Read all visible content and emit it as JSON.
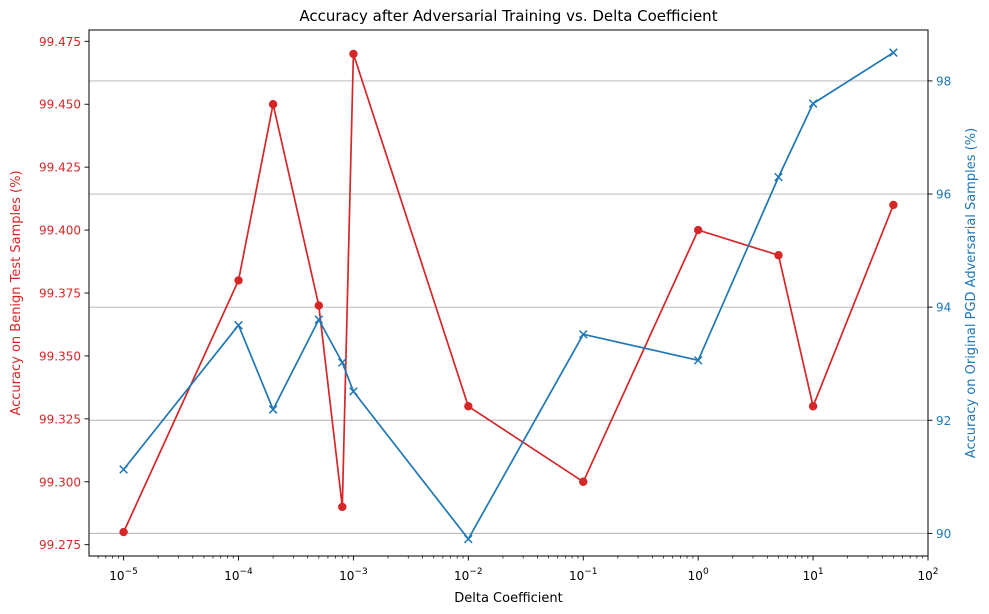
{
  "chart_data": {
    "type": "line",
    "title": "Accuracy after Adversarial Training vs. Delta Coefficient",
    "xlabel": "Delta Coefficient",
    "x_scale": "log",
    "xlim": [
      5e-06,
      100
    ],
    "x_tick_values": [
      1e-05,
      0.0001,
      0.001,
      0.01,
      0.1,
      1,
      10,
      100
    ],
    "x_tick_exponents": [
      "−5",
      "−4",
      "−3",
      "−2",
      "−1",
      "0",
      "1",
      "2"
    ],
    "x_tick_base": "10",
    "x": [
      1e-05,
      0.0001,
      0.0002,
      0.0005,
      0.0008,
      0.001,
      0.01,
      0.1,
      1,
      5,
      10,
      50
    ],
    "y_left": {
      "label": "Accuracy on Benign Test Samples (%)",
      "color": "#d62728",
      "ylim": [
        99.2705,
        99.4795
      ],
      "ticks": [
        99.275,
        99.3,
        99.325,
        99.35,
        99.375,
        99.4,
        99.425,
        99.45,
        99.475
      ],
      "tick_labels": [
        "99.275",
        "99.300",
        "99.325",
        "99.350",
        "99.375",
        "99.400",
        "99.425",
        "99.450",
        "99.475"
      ]
    },
    "y_right": {
      "label": "Accuracy on Original PGD Adversarial Samples (%)",
      "color": "#1f77b4",
      "ylim": [
        89.6,
        98.9
      ],
      "ticks": [
        90,
        92,
        94,
        96,
        98
      ],
      "tick_labels": [
        "90",
        "92",
        "94",
        "96",
        "98"
      ],
      "grid": true
    },
    "series": [
      {
        "name": "Accuracy on Benign Test Samples (%)",
        "axis": "left",
        "marker": "circle",
        "color": "#d62728",
        "values": [
          99.28,
          99.38,
          99.45,
          99.37,
          99.29,
          99.47,
          99.33,
          99.3,
          99.4,
          99.39,
          99.33,
          99.41
        ]
      },
      {
        "name": "Accuracy on Original PGD Adversarial Samples (%)",
        "axis": "right",
        "marker": "x",
        "color": "#1f77b4",
        "values": [
          91.13,
          93.68,
          92.19,
          93.78,
          93.02,
          92.51,
          89.9,
          93.52,
          93.06,
          96.3,
          97.6,
          98.5
        ]
      }
    ]
  }
}
